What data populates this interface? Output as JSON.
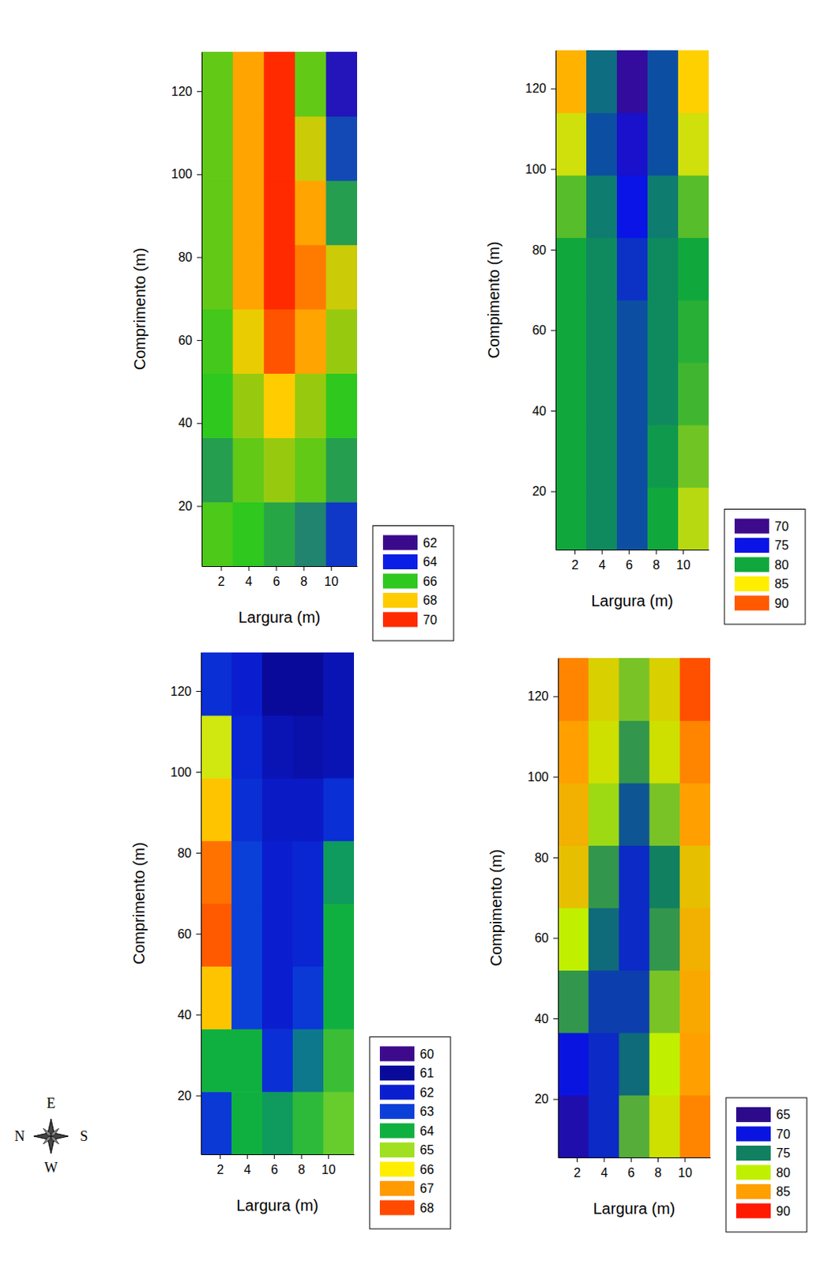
{
  "chart_data": [
    {
      "type": "heatmap",
      "x_label": "Largura (m)",
      "y_label": "Comprimento (m)",
      "x": [
        1.73,
        3.99,
        6.25,
        8.51,
        10.77
      ],
      "y": [
        13.25,
        28.75,
        44.25,
        59.75,
        75.25,
        90.75,
        106.25,
        121.75
      ],
      "z": [
        [
          66.3,
          66,
          65.6,
          65.2,
          64.3
        ],
        [
          65.5,
          66.5,
          67,
          66.5,
          65.5
        ],
        [
          66,
          67,
          68,
          67,
          66
        ],
        [
          66.2,
          67.8,
          69.5,
          68.5,
          67
        ],
        [
          66.5,
          68.5,
          70,
          69,
          67.5
        ],
        [
          66.5,
          68.5,
          70,
          68.5,
          65.5
        ],
        [
          66.5,
          68.5,
          70,
          67.5,
          64.5
        ],
        [
          66.5,
          68.5,
          70,
          66.5,
          63
        ]
      ],
      "xlim": [
        0.6,
        11.9
      ],
      "ylim": [
        5.5,
        129.5
      ],
      "xticks": [
        2,
        4,
        6,
        8,
        10
      ],
      "yticks": [
        20,
        40,
        60,
        80,
        100,
        120
      ],
      "zticks": [
        62,
        64,
        66,
        68,
        70
      ],
      "colors": [
        "#3b0a8c",
        "#0a1fe6",
        "#2ec81e",
        "#ffcc00",
        "#ff2a00"
      ]
    },
    {
      "type": "heatmap",
      "x_label": "Largura (m)",
      "y_label": "Compimento (m)",
      "x": [
        1.73,
        3.99,
        6.25,
        8.51,
        10.77
      ],
      "y": [
        13.25,
        28.75,
        44.25,
        59.75,
        75.25,
        90.75,
        106.25,
        121.75
      ],
      "z": [
        [
          80,
          79,
          77,
          80,
          83.5
        ],
        [
          80,
          79,
          77,
          79.5,
          82
        ],
        [
          80,
          79,
          77,
          79,
          81
        ],
        [
          80,
          79,
          77,
          79,
          80.5
        ],
        [
          80,
          79,
          76,
          79,
          80
        ],
        [
          81.5,
          78.5,
          75,
          78.5,
          81.5
        ],
        [
          84,
          77,
          73.5,
          77,
          84
        ],
        [
          87,
          78,
          71,
          77,
          86
        ]
      ],
      "xlim": [
        0.6,
        11.9
      ],
      "ylim": [
        5.5,
        129.5
      ],
      "xticks": [
        2,
        4,
        6,
        8,
        10
      ],
      "yticks": [
        20,
        40,
        60,
        80,
        100,
        120
      ],
      "zticks": [
        70,
        75,
        80,
        85,
        90
      ],
      "colors": [
        "#3d0a8c",
        "#0a14e6",
        "#10a83c",
        "#ffee00",
        "#ff5a00"
      ]
    },
    {
      "type": "heatmap",
      "x_label": "Largura (m)",
      "y_label": "Comprimento (m)",
      "x": [
        1.73,
        3.99,
        6.25,
        8.51,
        10.77
      ],
      "y": [
        13.25,
        28.75,
        44.25,
        59.75,
        75.25,
        90.75,
        106.25,
        121.75
      ],
      "z": [
        [
          62.8,
          64,
          63.8,
          64.2,
          64.6
        ],
        [
          64,
          64,
          62.5,
          63.5,
          64.3
        ],
        [
          66.5,
          63,
          62,
          62.8,
          64
        ],
        [
          67.8,
          63,
          62,
          62.2,
          64
        ],
        [
          67.5,
          63,
          62,
          62.2,
          63.8
        ],
        [
          66.5,
          62.5,
          61.8,
          61.8,
          62.5
        ],
        [
          65.5,
          62.2,
          61.5,
          61.3,
          61.5
        ],
        [
          62.5,
          62,
          61,
          61,
          61.5
        ]
      ],
      "xlim": [
        0.6,
        11.9
      ],
      "ylim": [
        5.5,
        129.5
      ],
      "xticks": [
        2,
        4,
        6,
        8,
        10
      ],
      "yticks": [
        20,
        40,
        60,
        80,
        100,
        120
      ],
      "zticks": [
        60,
        61,
        62,
        63,
        64,
        65,
        66,
        67,
        68
      ],
      "colors": [
        "#3d0a8c",
        "#0a0a9a",
        "#0a1ed0",
        "#0a40d8",
        "#10b040",
        "#a0e020",
        "#ffee00",
        "#ff9a00",
        "#ff4a00"
      ]
    },
    {
      "type": "heatmap",
      "x_label": "Largura (m)",
      "y_label": "Compimento (m)",
      "x": [
        1.73,
        3.99,
        6.25,
        8.51,
        10.77
      ],
      "y": [
        13.25,
        28.75,
        44.25,
        59.75,
        75.25,
        90.75,
        106.25,
        121.75
      ],
      "z": [
        [
          67,
          71,
          77,
          81,
          86
        ],
        [
          70,
          71,
          74,
          80,
          85
        ],
        [
          76,
          72,
          72,
          78,
          84.5
        ],
        [
          80,
          74,
          71,
          76,
          84
        ],
        [
          83,
          76,
          71,
          75,
          83
        ],
        [
          84,
          79,
          73,
          78,
          85
        ],
        [
          85,
          81,
          76,
          81,
          86
        ],
        [
          86,
          82,
          78,
          82,
          88
        ]
      ],
      "xlim": [
        0.6,
        11.9
      ],
      "ylim": [
        5.5,
        129.5
      ],
      "xticks": [
        2,
        4,
        6,
        8,
        10
      ],
      "yticks": [
        20,
        40,
        60,
        80,
        100,
        120
      ],
      "zticks": [
        65,
        70,
        75,
        80,
        85,
        90
      ],
      "colors": [
        "#2d0a8a",
        "#0a14e0",
        "#108060",
        "#c0f000",
        "#ffa000",
        "#ff1a00"
      ]
    }
  ],
  "compass": {
    "labels": [
      "E",
      "N",
      "S",
      "W"
    ]
  }
}
